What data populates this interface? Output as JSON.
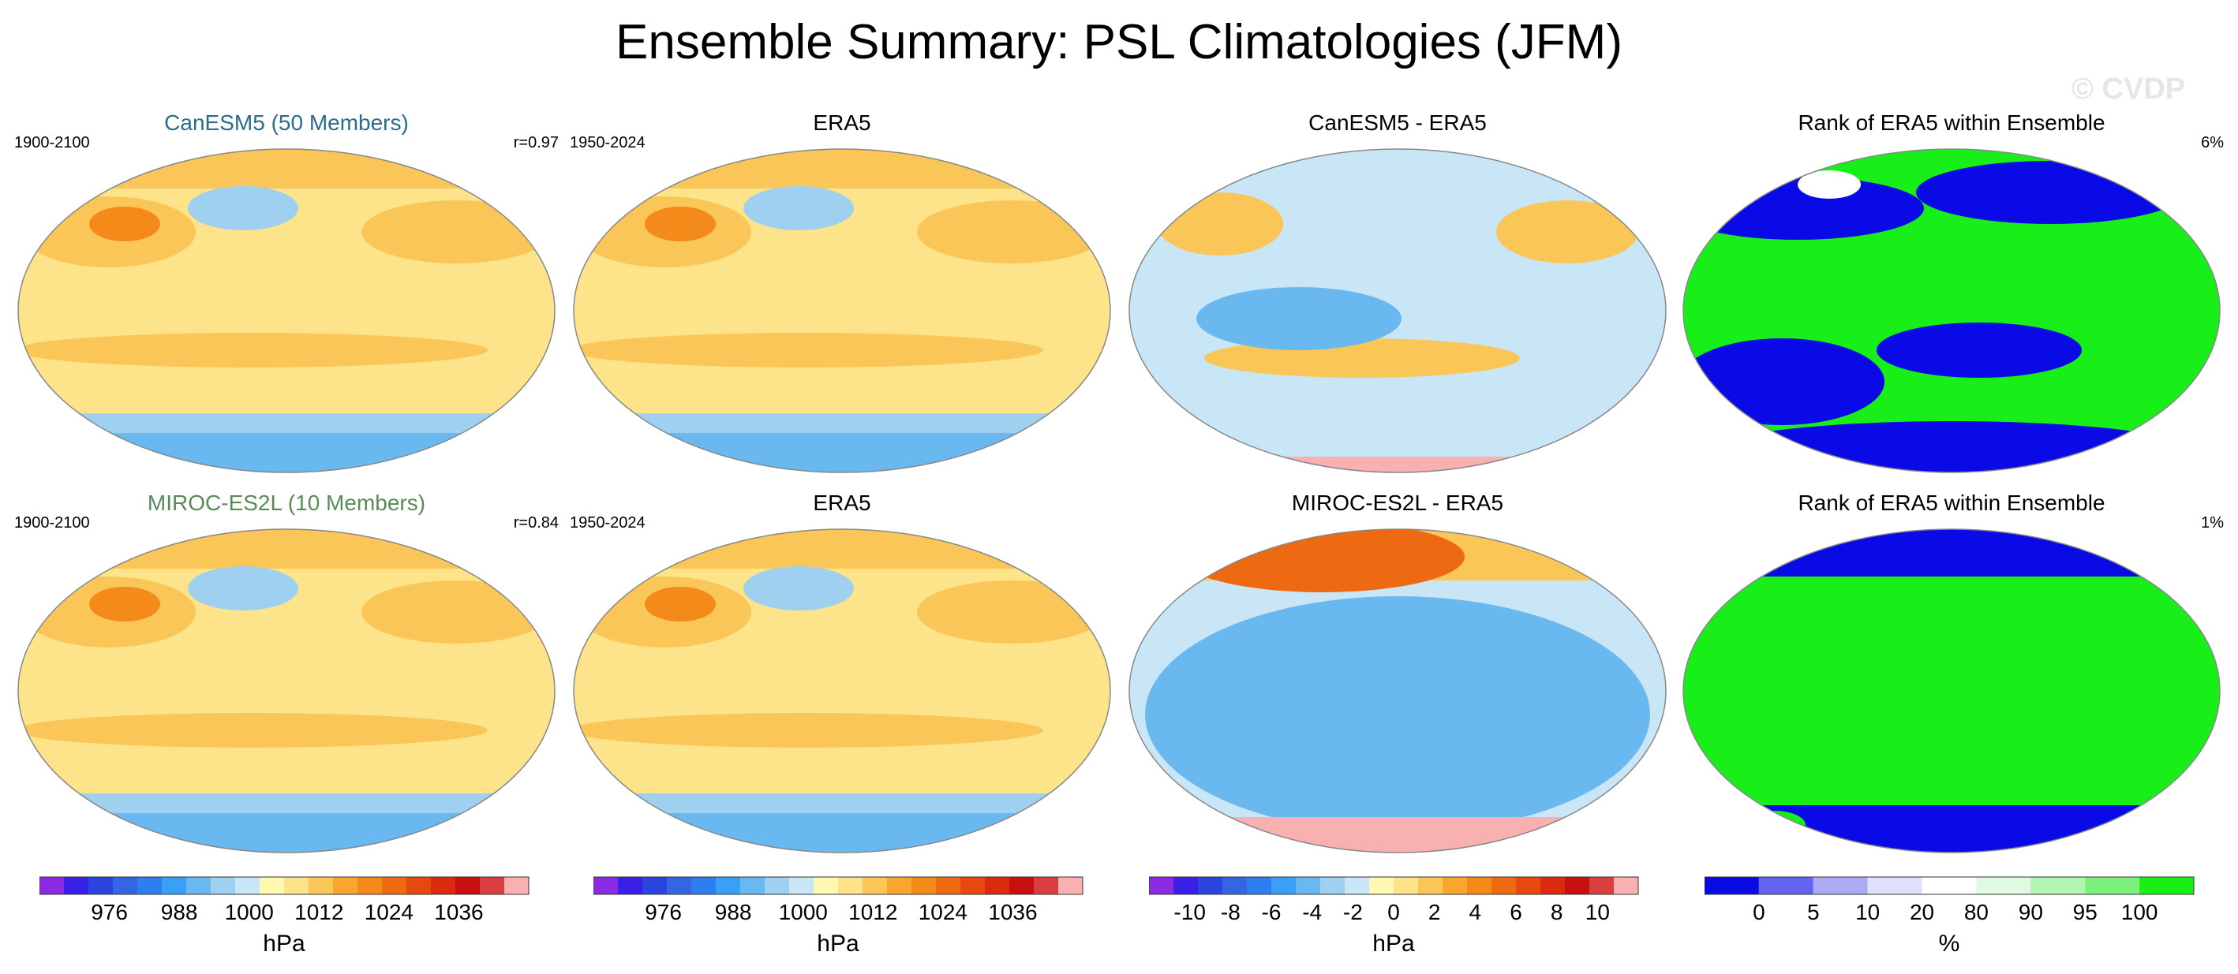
{
  "title": "Ensemble Summary: PSL Climatologies (JFM)",
  "watermark": "© CVDP",
  "rows": [
    {
      "panels": [
        {
          "title": "CanESM5 (50 Members)",
          "left": "1900-2100",
          "right": "r=0.97",
          "kind": "clim"
        },
        {
          "title": "ERA5",
          "left": "1950-2024",
          "right": "",
          "kind": "clim"
        },
        {
          "title": "CanESM5 - ERA5",
          "left": "",
          "right": "",
          "kind": "diff"
        },
        {
          "title": "Rank of ERA5 within Ensemble",
          "left": "",
          "right": "6%",
          "kind": "rank"
        }
      ]
    },
    {
      "panels": [
        {
          "title": "MIROC-ES2L (10 Members)",
          "left": "1900-2100",
          "right": "r=0.84",
          "kind": "clim"
        },
        {
          "title": "ERA5",
          "left": "1950-2024",
          "right": "",
          "kind": "clim"
        },
        {
          "title": "MIROC-ES2L - ERA5",
          "left": "",
          "right": "",
          "kind": "diff"
        },
        {
          "title": "Rank of ERA5 within Ensemble",
          "left": "",
          "right": "1%",
          "kind": "rank"
        }
      ]
    }
  ],
  "colorbars": [
    {
      "unit": "hPa",
      "ticks": [
        "976",
        "988",
        "1000",
        "1012",
        "1024",
        "1036"
      ],
      "colors": [
        "#8a2be2",
        "#3a1fe6",
        "#2a44e0",
        "#3366e0",
        "#2f7ef0",
        "#3aa0f5",
        "#6ab8f0",
        "#9fd0f0",
        "#c8e6f6",
        "#fff8b0",
        "#fde48a",
        "#fbc658",
        "#f9a630",
        "#f48a1a",
        "#ee6a12",
        "#e64810",
        "#da2a10",
        "#c81010",
        "#d84040",
        "#f8b0b0"
      ]
    },
    {
      "unit": "hPa",
      "ticks": [
        "976",
        "988",
        "1000",
        "1012",
        "1024",
        "1036"
      ],
      "colors": [
        "#8a2be2",
        "#3a1fe6",
        "#2a44e0",
        "#3366e0",
        "#2f7ef0",
        "#3aa0f5",
        "#6ab8f0",
        "#9fd0f0",
        "#c8e6f6",
        "#fff8b0",
        "#fde48a",
        "#fbc658",
        "#f9a630",
        "#f48a1a",
        "#ee6a12",
        "#e64810",
        "#da2a10",
        "#c81010",
        "#d84040",
        "#f8b0b0"
      ]
    },
    {
      "unit": "hPa",
      "ticks": [
        "-10",
        "-8",
        "-6",
        "-4",
        "-2",
        "0",
        "2",
        "4",
        "6",
        "8",
        "10"
      ],
      "colors": [
        "#8a2be2",
        "#3a1fe6",
        "#2a44e0",
        "#3366e0",
        "#2f7ef0",
        "#3aa0f5",
        "#6ab8f0",
        "#9fd0f0",
        "#c8e6f6",
        "#fff8b0",
        "#fde48a",
        "#fbc658",
        "#f9a630",
        "#f48a1a",
        "#ee6a12",
        "#e64810",
        "#da2a10",
        "#c81010",
        "#d84040",
        "#f8b0b0"
      ]
    },
    {
      "unit": "%",
      "ticks": [
        "0",
        "5",
        "10",
        "20",
        "80",
        "90",
        "95",
        "100"
      ],
      "colors": [
        "#0a0ae6",
        "#6464f0",
        "#aaaaf5",
        "#e0e0fa",
        "#ffffff",
        "#e0fae0",
        "#b0f5b0",
        "#7cf07c",
        "#18ee18"
      ]
    }
  ],
  "map_colors": {
    "clim_bg": "#fde48a",
    "clim_low": "#9fd0f0",
    "clim_low2": "#6ab8f0",
    "clim_high": "#fbc658",
    "clim_high2": "#f48a1a",
    "diff_bg": "#c8e6f6",
    "diff_pos": "#fbc658",
    "diff_neg": "#6ab8f0",
    "rank_green": "#18ee18",
    "rank_blue": "#0a0ae6",
    "coast": "#555555"
  }
}
